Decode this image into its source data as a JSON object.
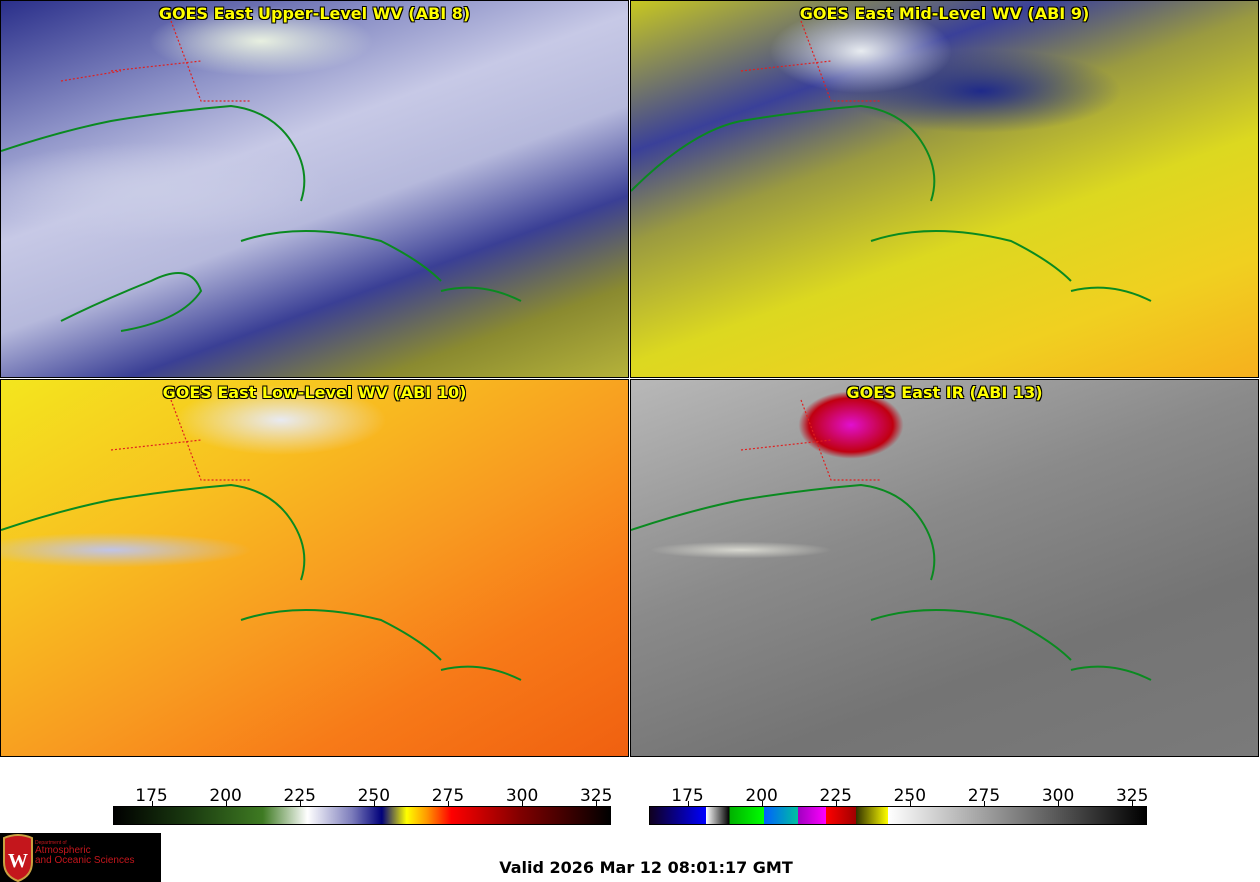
{
  "panels": [
    {
      "title": "GOES East Upper-Level WV (ABI 8)"
    },
    {
      "title": "GOES East Mid-Level WV (ABI 9)"
    },
    {
      "title": "GOES East Low-Level WV (ABI 10)"
    },
    {
      "title": "GOES East IR (ABI 13)"
    }
  ],
  "colorbars": [
    {
      "name": "water-vapor",
      "ticks": [
        "175",
        "200",
        "225",
        "250",
        "275",
        "300",
        "325"
      ],
      "range": [
        162,
        330
      ]
    },
    {
      "name": "infrared",
      "ticks": [
        "175",
        "200",
        "225",
        "250",
        "275",
        "300",
        "325"
      ],
      "range": [
        162,
        330
      ]
    }
  ],
  "logo": {
    "line1": "Department of",
    "line2": "Atmospheric",
    "line3": "and Oceanic Sciences",
    "seal_letter": "W"
  },
  "valid": "Valid 2026 Mar 12 08:01:17 GMT"
}
